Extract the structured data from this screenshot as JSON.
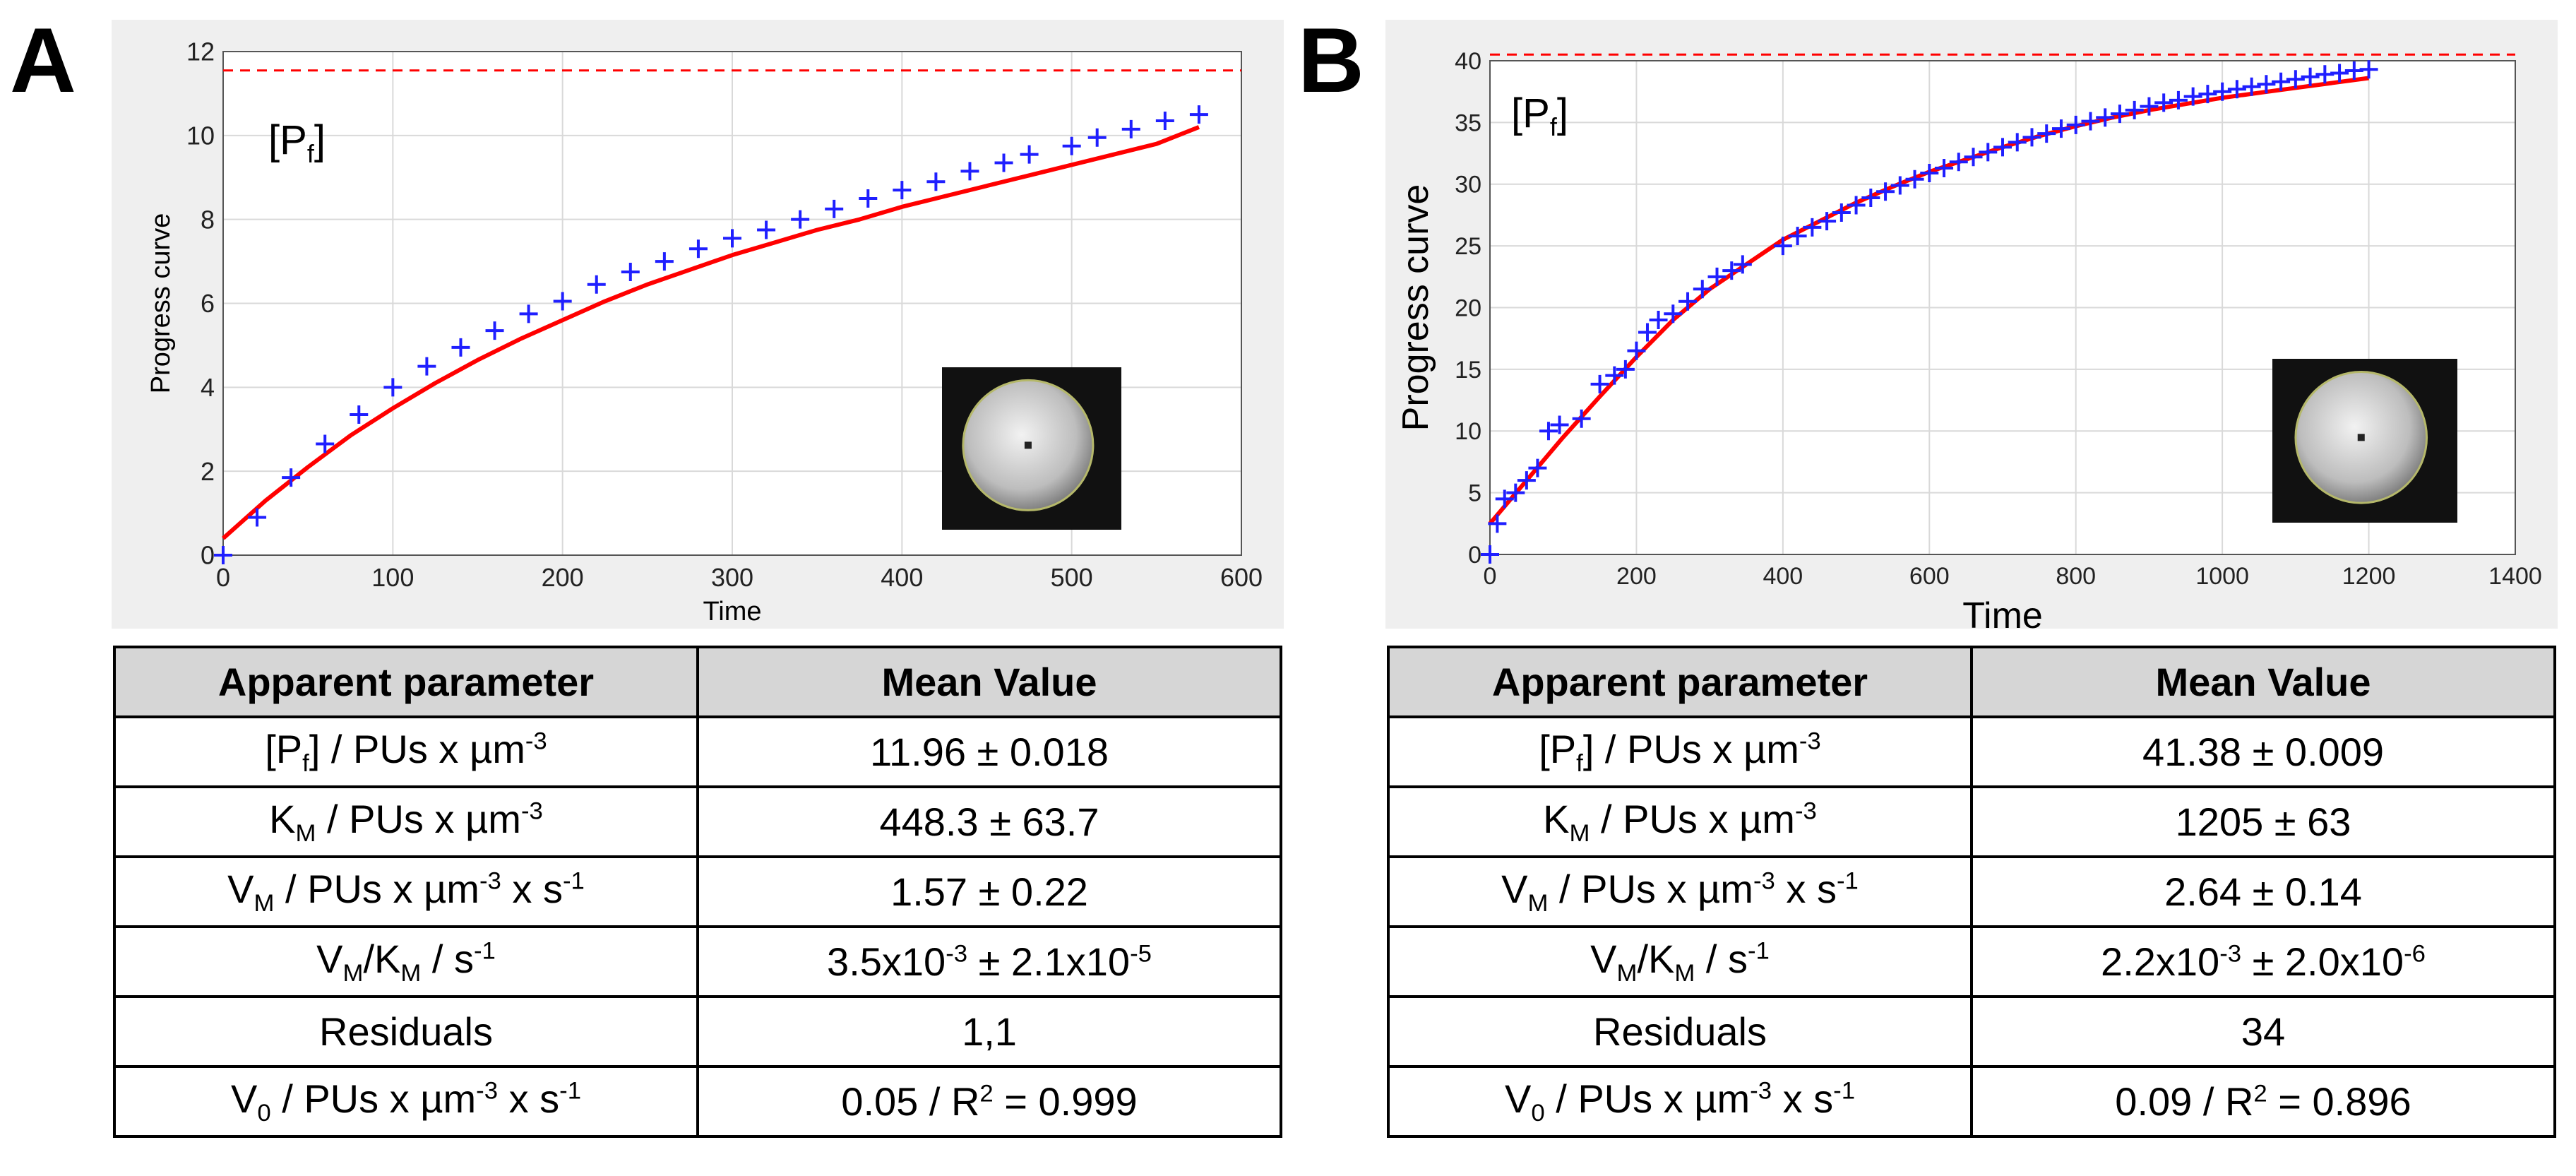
{
  "colors": {
    "fit": "#ff0000",
    "data": "#1f1fff",
    "asymptote": "#ff0000",
    "grid": "#d9d9d9",
    "panel_bg": "#efefef",
    "header_bg": "#d6d6d6"
  },
  "panels": [
    {
      "letter": "A",
      "pf_label": {
        "main": "[P",
        "sub": "f",
        "close": "]"
      },
      "inset_icon": "droplet-micrograph",
      "chart_data": {
        "type": "scatter",
        "title": "",
        "xlabel": "Time",
        "ylabel": "Progress curve",
        "xlim": [
          0,
          600
        ],
        "ylim": [
          0,
          12
        ],
        "xticks": [
          0,
          100,
          200,
          300,
          400,
          500,
          600
        ],
        "yticks": [
          0,
          2,
          4,
          6,
          8,
          10,
          12
        ],
        "grid": true,
        "asymptote": 11.55,
        "series": [
          {
            "name": "data",
            "style": "plus",
            "x": [
              0,
              20,
              40,
              60,
              80,
              100,
              120,
              140,
              160,
              180,
              200,
              220,
              240,
              260,
              280,
              300,
              320,
              340,
              360,
              380,
              400,
              420,
              440,
              460,
              475,
              500,
              515,
              535,
              555,
              575
            ],
            "y": [
              0,
              0.9,
              1.85,
              2.65,
              3.35,
              4.0,
              4.5,
              4.95,
              5.35,
              5.75,
              6.05,
              6.45,
              6.75,
              7.0,
              7.3,
              7.55,
              7.75,
              8.0,
              8.25,
              8.5,
              8.7,
              8.9,
              9.15,
              9.35,
              9.55,
              9.75,
              9.95,
              10.15,
              10.35,
              10.5
            ]
          },
          {
            "name": "fit",
            "style": "line",
            "x": [
              0,
              25,
              50,
              75,
              100,
              125,
              150,
              175,
              200,
              225,
              250,
              275,
              300,
              325,
              350,
              375,
              400,
              425,
              450,
              475,
              500,
              525,
              550,
              575
            ],
            "y": [
              0.4,
              1.3,
              2.1,
              2.85,
              3.5,
              4.1,
              4.65,
              5.15,
              5.6,
              6.05,
              6.45,
              6.8,
              7.15,
              7.45,
              7.75,
              8.0,
              8.3,
              8.55,
              8.8,
              9.05,
              9.3,
              9.55,
              9.8,
              10.2
            ]
          }
        ]
      },
      "table": {
        "header": [
          "Apparent parameter",
          "Mean Value"
        ],
        "rows": [
          {
            "p_main": "[P",
            "p_sub": "f",
            "p_rest": "] / PUs x µm",
            "p_sup": "-3",
            "p_tail": "",
            "v_main": "11.96 ± 0.018",
            "v_sup": "",
            "v_mid": "",
            "v_sup2": "",
            "v_tail": ""
          },
          {
            "p_main": "K",
            "p_sub": "M",
            "p_rest": " / PUs x µm",
            "p_sup": "-3",
            "p_tail": "",
            "v_main": "448.3 ± 63.7",
            "v_sup": "",
            "v_mid": "",
            "v_sup2": "",
            "v_tail": ""
          },
          {
            "p_main": "V",
            "p_sub": "M",
            "p_rest": " / PUs x µm",
            "p_sup": "-3",
            "p_tail": " x s",
            "p_sup2": "-1",
            "v_main": "1.57 ± 0.22",
            "v_sup": "",
            "v_mid": "",
            "v_sup2": "",
            "v_tail": ""
          },
          {
            "p_main": "V",
            "p_sub": "M",
            "p_rest": "/K",
            "p_sub2": "M",
            "p_tail": " / s",
            "p_sup2": "-1",
            "v_main": "3.5x10",
            "v_sup": "-3",
            "v_mid": " ± 2.1x10",
            "v_sup2": "-5",
            "v_tail": ""
          },
          {
            "p_main": "Residuals",
            "v_main": "1,1"
          },
          {
            "p_main": "V",
            "p_sub": "0",
            "p_rest": " / PUs x µm",
            "p_sup": "-3",
            "p_tail": " x s",
            "p_sup2": "-1",
            "v_main": "0.05  / R",
            "v_sup": "2",
            "v_mid": " = 0.999",
            "v_sup2": "",
            "v_tail": ""
          }
        ]
      }
    },
    {
      "letter": "B",
      "pf_label": {
        "main": "[P",
        "sub": "f",
        "close": "]"
      },
      "inset_icon": "droplet-micrograph",
      "chart_data": {
        "type": "scatter",
        "title": "",
        "xlabel": "Time",
        "ylabel": "Progress curve",
        "xlim": [
          0,
          1400
        ],
        "ylim": [
          0,
          40
        ],
        "xticks": [
          0,
          200,
          400,
          600,
          800,
          1000,
          1200,
          1400
        ],
        "yticks": [
          0,
          5,
          10,
          15,
          20,
          25,
          30,
          35,
          40
        ],
        "grid": true,
        "asymptote": 40.5,
        "series": [
          {
            "name": "data",
            "style": "plus",
            "x": [
              0,
              10,
              20,
              35,
              50,
              65,
              80,
              95,
              125,
              150,
              170,
              185,
              200,
              215,
              230,
              250,
              270,
              290,
              310,
              330,
              345,
              400,
              420,
              440,
              460,
              480,
              500,
              520,
              540,
              560,
              580,
              600,
              620,
              640,
              660,
              680,
              700,
              720,
              740,
              760,
              780,
              800,
              820,
              840,
              860,
              880,
              900,
              920,
              940,
              960,
              980,
              1000,
              1020,
              1040,
              1060,
              1080,
              1100,
              1120,
              1140,
              1160,
              1180,
              1200
            ],
            "y": [
              0,
              2.5,
              4.5,
              5.0,
              6.0,
              7.0,
              10.0,
              10.5,
              11.0,
              13.8,
              14.5,
              15.0,
              16.5,
              18.0,
              19.0,
              19.5,
              20.5,
              21.5,
              22.5,
              23.0,
              23.5,
              25.0,
              25.8,
              26.5,
              27.0,
              27.7,
              28.3,
              28.9,
              29.4,
              29.9,
              30.4,
              30.9,
              31.3,
              31.8,
              32.2,
              32.6,
              33.0,
              33.4,
              33.8,
              34.1,
              34.5,
              34.8,
              35.1,
              35.4,
              35.7,
              36.0,
              36.3,
              36.6,
              36.8,
              37.1,
              37.3,
              37.5,
              37.7,
              37.9,
              38.1,
              38.3,
              38.5,
              38.7,
              38.9,
              39.0,
              39.2,
              39.3
            ]
          },
          {
            "name": "fit",
            "style": "line",
            "x": [
              0,
              50,
              100,
              150,
              200,
              250,
              300,
              350,
              400,
              450,
              500,
              550,
              600,
              650,
              700,
              750,
              800,
              850,
              900,
              950,
              1000,
              1050,
              1100,
              1150,
              1200
            ],
            "y": [
              2.5,
              6.0,
              9.5,
              12.8,
              16.0,
              19.0,
              21.5,
              23.5,
              25.5,
              27.0,
              28.5,
              29.8,
              31.0,
              32.0,
              33.0,
              33.9,
              34.7,
              35.4,
              36.0,
              36.5,
              37.0,
              37.4,
              37.8,
              38.2,
              38.6
            ]
          }
        ]
      },
      "table": {
        "header": [
          "Apparent parameter",
          "Mean Value"
        ],
        "rows": [
          {
            "p_main": "[P",
            "p_sub": "f",
            "p_rest": "] / PUs x µm",
            "p_sup": "-3",
            "p_tail": "",
            "v_main": "41.38 ± 0.009",
            "v_sup": "",
            "v_mid": "",
            "v_sup2": "",
            "v_tail": ""
          },
          {
            "p_main": "K",
            "p_sub": "M",
            "p_rest": " / PUs x µm",
            "p_sup": "-3",
            "p_tail": "",
            "v_main": "1205 ± 63",
            "v_sup": "",
            "v_mid": "",
            "v_sup2": "",
            "v_tail": ""
          },
          {
            "p_main": "V",
            "p_sub": "M",
            "p_rest": " / PUs x µm",
            "p_sup": "-3",
            "p_tail": " x s",
            "p_sup2": "-1",
            "v_main": "2.64 ± 0.14",
            "v_sup": "",
            "v_mid": "",
            "v_sup2": "",
            "v_tail": ""
          },
          {
            "p_main": "V",
            "p_sub": "M",
            "p_rest": "/K",
            "p_sub2": "M",
            "p_tail": " / s",
            "p_sup2": "-1",
            "v_main": "2.2x10",
            "v_sup": "-3",
            "v_mid": " ±  2.0x10",
            "v_sup2": "-6",
            "v_tail": ""
          },
          {
            "p_main": "Residuals",
            "v_main": "34"
          },
          {
            "p_main": "V",
            "p_sub": "0",
            "p_rest": " / PUs x µm",
            "p_sup": "-3",
            "p_tail": " x s",
            "p_sup2": "-1",
            "v_main": "0.09  / R",
            "v_sup": "2",
            "v_mid": " = 0.896",
            "v_sup2": "",
            "v_tail": ""
          }
        ]
      }
    }
  ]
}
